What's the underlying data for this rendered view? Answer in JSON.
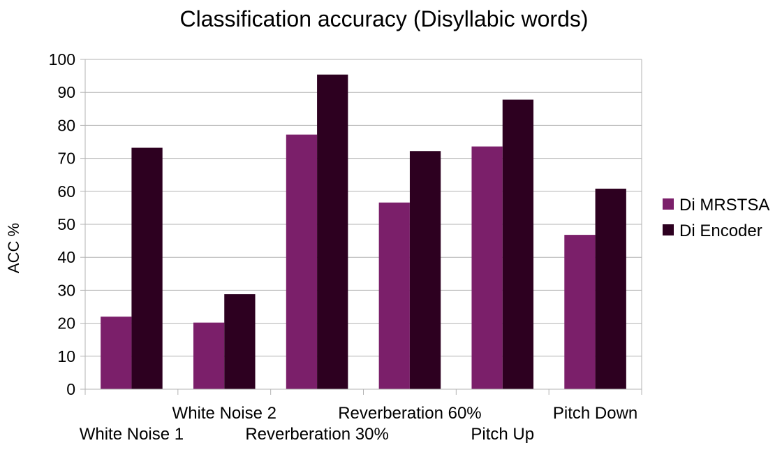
{
  "chart_data": {
    "type": "bar",
    "title": "Classification accuracy (Disyllabic words)",
    "ylabel": "ACC %",
    "xlabel": "",
    "ylim": [
      0,
      100
    ],
    "yticks": [
      0,
      10,
      20,
      30,
      40,
      50,
      60,
      70,
      80,
      90,
      100
    ],
    "grid": true,
    "legend_position": "right",
    "categories": [
      "White Noise 1",
      "White Noise 2",
      "Reverberation 30%",
      "Reverberation 60%",
      "Pitch Up",
      "Pitch Down"
    ],
    "series": [
      {
        "name": "Di MRSTSA",
        "color": "#7b1f6a",
        "values": [
          22,
          20.2,
          77.2,
          56.6,
          73.6,
          46.8
        ]
      },
      {
        "name": "Di Encoder",
        "color": "#2d0020",
        "values": [
          73.2,
          28.8,
          95.4,
          72.2,
          87.8,
          60.8
        ]
      }
    ]
  }
}
